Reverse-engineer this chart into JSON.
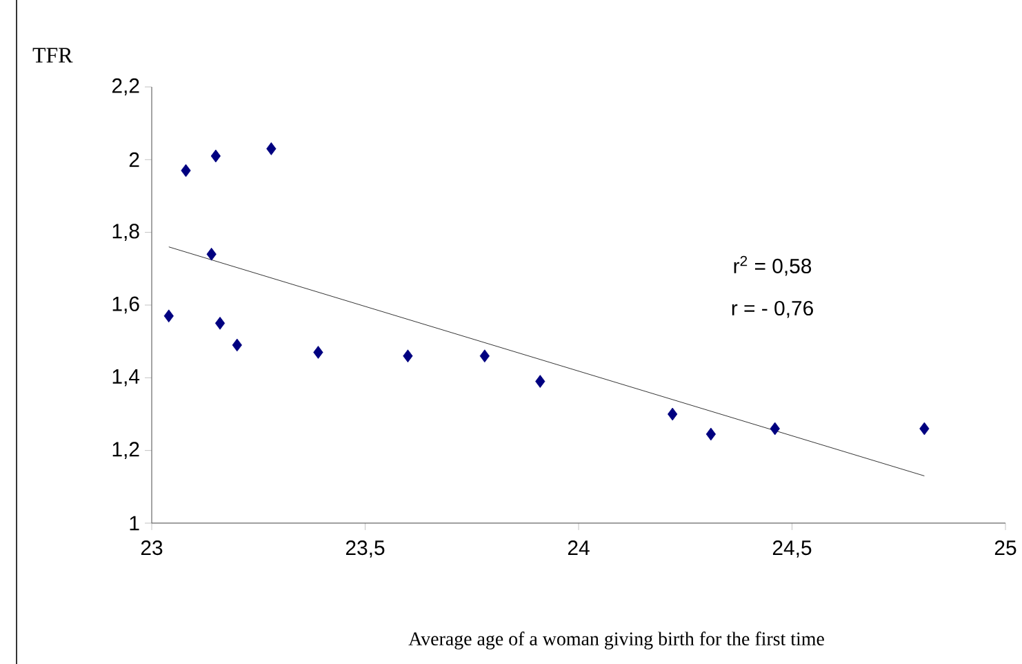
{
  "chart_data": {
    "type": "scatter",
    "xlabel": "Average age of a woman giving birth for the first time",
    "ylabel": "TFR",
    "annotations": [
      "r$^{2}$ = 0,58",
      "r = - 0,76"
    ],
    "xlim": [
      23,
      25
    ],
    "xticks": [
      23,
      {
        "value": 23.5,
        "label": "23,5"
      },
      24,
      {
        "value": 24.5,
        "label": "24,5"
      },
      25
    ],
    "ylim": [
      1,
      2.2
    ],
    "yticks": [
      1,
      {
        "value": 1.2,
        "label": "1,2"
      },
      {
        "value": 1.4,
        "label": "1,4"
      },
      {
        "value": 1.6,
        "label": "1,6"
      },
      {
        "value": 1.8,
        "label": "1,8"
      },
      2,
      {
        "value": 2.2,
        "label": "2,2"
      }
    ],
    "series": [
      {
        "color": "#000080",
        "marker": "diamond",
        "x": [
          23.04,
          23.08,
          23.14,
          23.15,
          23.16,
          23.2,
          23.28,
          23.39,
          23.6,
          23.78,
          23.91,
          24.22,
          24.31,
          24.46,
          24.81
        ],
        "values": [
          1.57,
          1.97,
          1.74,
          2.01,
          1.55,
          1.49,
          2.03,
          1.47,
          1.46,
          1.46,
          1.39,
          1.3,
          1.245,
          1.26,
          1.26
        ]
      },
      {
        "type": "line",
        "color": "#000000",
        "marker": "none",
        "line_style": "solid",
        "x": [
          23.04,
          24.81
        ],
        "values": [
          1.76,
          1.13
        ]
      }
    ]
  }
}
